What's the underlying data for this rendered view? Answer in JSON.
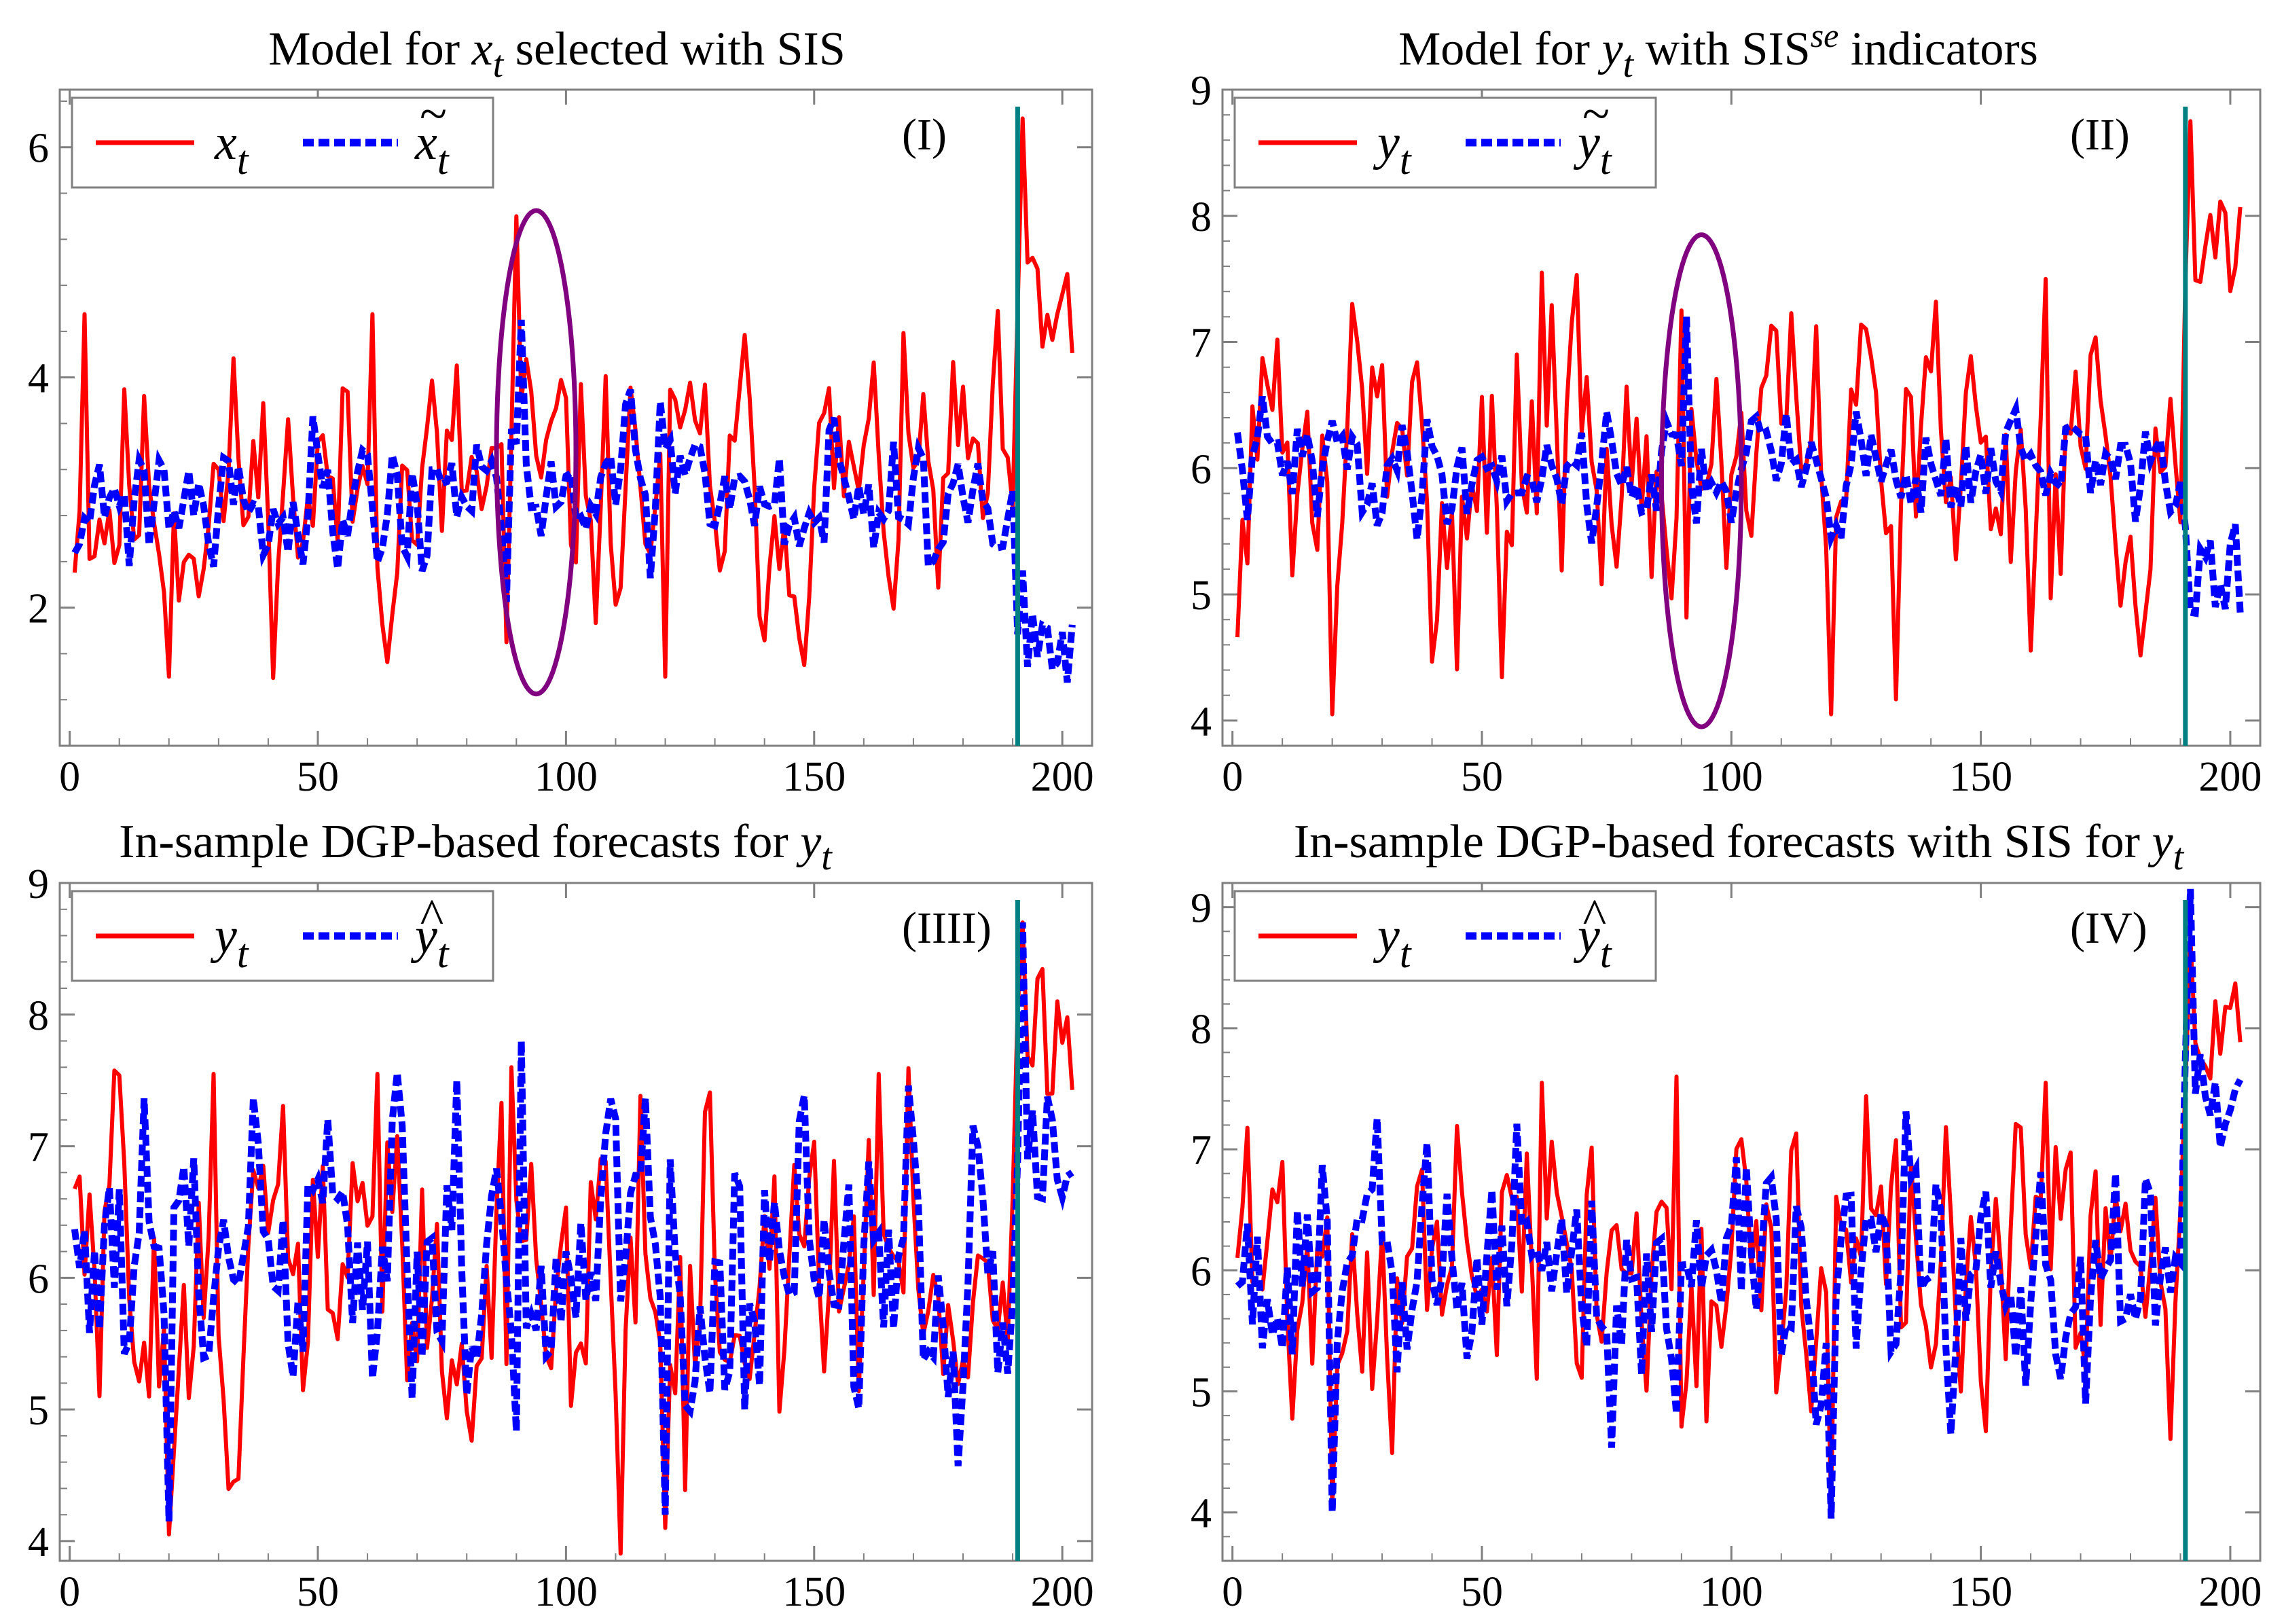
{
  "figure": {
    "colors": {
      "actual": "#ff0000",
      "fitted": "#0000ff",
      "break_line": "#008080",
      "ellipse": "#800080",
      "frame": "#808080"
    }
  },
  "chart_data": [
    {
      "type": "line",
      "title_prefix": "Model for ",
      "title_var": "x",
      "title_sub": "t",
      "title_sup": "",
      "title_suffix": " selected with SIS",
      "panel_label": "(I)",
      "legend": [
        {
          "base": "x",
          "accent": "",
          "sub": "t"
        },
        {
          "base": "x",
          "accent": "~",
          "sub": "t"
        }
      ],
      "xlim": [
        -2,
        206
      ],
      "ylim": [
        0.8,
        6.5
      ],
      "xticks": [
        0,
        50,
        100,
        150,
        200
      ],
      "yticks": [
        2,
        4,
        6
      ],
      "break_x": 191,
      "ellipse": {
        "cx": 94,
        "cy": 3.35,
        "rx": 8,
        "ry": 2.1
      },
      "actual_seed": 11,
      "fitted_seed": 21,
      "mode": "sis_x",
      "base_level": 3.0,
      "actual_amp": 0.55,
      "fitted_amp": 0.3,
      "post_actual_level": 4.5,
      "post_fitted_level": 1.9,
      "spikes": [
        {
          "x": 3,
          "y": 4.55
        },
        {
          "x": 20,
          "y": 1.4
        },
        {
          "x": 61,
          "y": 4.55
        },
        {
          "x": 90,
          "y": 5.4
        },
        {
          "x": 88,
          "y": 1.7
        },
        {
          "x": 120,
          "y": 1.4
        },
        {
          "x": 192,
          "y": 6.25
        }
      ],
      "fitted_spikes": [
        {
          "x": 91,
          "y": 4.5
        },
        {
          "x": 88,
          "y": 2.05
        },
        {
          "x": 201,
          "y": 1.35
        }
      ]
    },
    {
      "type": "line",
      "title_prefix": "Model for ",
      "title_var": "y",
      "title_sub": "t",
      "title_sup": "se",
      "title_suffix": " with SIS",
      "title_tail": " indicators",
      "panel_label": "(II)",
      "legend": [
        {
          "base": "y",
          "accent": "",
          "sub": "t"
        },
        {
          "base": "y",
          "accent": "~",
          "sub": "t"
        }
      ],
      "xlim": [
        -2,
        206
      ],
      "ylim": [
        3.8,
        9.0
      ],
      "xticks": [
        0,
        50,
        100,
        150,
        200
      ],
      "yticks": [
        4,
        5,
        6,
        7,
        8,
        9
      ],
      "break_x": 191,
      "ellipse": {
        "cx": 94,
        "cy": 5.9,
        "rx": 8,
        "ry": 1.95
      },
      "actual_seed": 31,
      "fitted_seed": 41,
      "mode": "sis_y",
      "base_level": 6.0,
      "actual_amp": 0.6,
      "fitted_amp": 0.22,
      "post_actual_level": 7.9,
      "post_fitted_level": 5.2,
      "spikes": [
        {
          "x": 20,
          "y": 4.05
        },
        {
          "x": 62,
          "y": 7.55
        },
        {
          "x": 90,
          "y": 7.25
        },
        {
          "x": 120,
          "y": 4.05
        },
        {
          "x": 163,
          "y": 7.5
        },
        {
          "x": 192,
          "y": 8.75
        }
      ],
      "fitted_spikes": [
        {
          "x": 91,
          "y": 7.2
        },
        {
          "x": 193,
          "y": 4.85
        },
        {
          "x": 202,
          "y": 4.85
        }
      ]
    },
    {
      "type": "line",
      "title_prefix": "In-sample DGP-based forecasts for ",
      "title_var": "y",
      "title_sub": "t",
      "title_sup": "",
      "title_suffix": "",
      "panel_label": "(IIII)",
      "legend": [
        {
          "base": "y",
          "accent": "",
          "sub": "t"
        },
        {
          "base": "y",
          "accent": "^",
          "sub": "t"
        }
      ],
      "xlim": [
        -2,
        206
      ],
      "ylim": [
        3.85,
        9.0
      ],
      "xticks": [
        0,
        50,
        100,
        150,
        200
      ],
      "yticks": [
        4,
        5,
        6,
        7,
        8,
        9
      ],
      "break_x": 191,
      "ellipse": null,
      "actual_seed": 51,
      "fitted_seed": 61,
      "mode": "dgp",
      "base_level": 6.0,
      "actual_amp": 0.6,
      "fitted_amp": 0.55,
      "post_actual_level": 7.9,
      "post_fitted_level": 7.0,
      "spikes": [
        {
          "x": 20,
          "y": 4.05
        },
        {
          "x": 62,
          "y": 7.55
        },
        {
          "x": 89,
          "y": 7.6
        },
        {
          "x": 120,
          "y": 4.1
        },
        {
          "x": 163,
          "y": 7.55
        },
        {
          "x": 192,
          "y": 8.7
        }
      ],
      "fitted_spikes": [
        {
          "x": 20,
          "y": 4.15
        },
        {
          "x": 91,
          "y": 7.8
        },
        {
          "x": 120,
          "y": 4.2
        },
        {
          "x": 192,
          "y": 8.7
        }
      ]
    },
    {
      "type": "line",
      "title_prefix": "In-sample DGP-based forecasts with SIS for ",
      "title_var": "y",
      "title_sub": "t",
      "title_sup": "",
      "title_suffix": "",
      "panel_label": "(IV)",
      "legend": [
        {
          "base": "y",
          "accent": "",
          "sub": "t"
        },
        {
          "base": "y",
          "accent": "^",
          "sub": "t"
        }
      ],
      "xlim": [
        -2,
        206
      ],
      "ylim": [
        3.6,
        9.2
      ],
      "xticks": [
        0,
        50,
        100,
        150,
        200
      ],
      "yticks": [
        4,
        5,
        6,
        7,
        8,
        9
      ],
      "break_x": 191,
      "ellipse": null,
      "actual_seed": 71,
      "fitted_seed": 81,
      "mode": "dgp_sis",
      "base_level": 6.0,
      "actual_amp": 0.55,
      "fitted_amp": 0.5,
      "post_actual_level": 7.9,
      "post_fitted_level": 7.4,
      "spikes": [
        {
          "x": 20,
          "y": 4.05
        },
        {
          "x": 62,
          "y": 7.55
        },
        {
          "x": 89,
          "y": 7.6
        },
        {
          "x": 120,
          "y": 4.05
        },
        {
          "x": 163,
          "y": 7.55
        },
        {
          "x": 192,
          "y": 8.75
        }
      ],
      "fitted_spikes": [
        {
          "x": 20,
          "y": 4.0
        },
        {
          "x": 120,
          "y": 3.95
        },
        {
          "x": 192,
          "y": 9.15
        }
      ]
    }
  ]
}
